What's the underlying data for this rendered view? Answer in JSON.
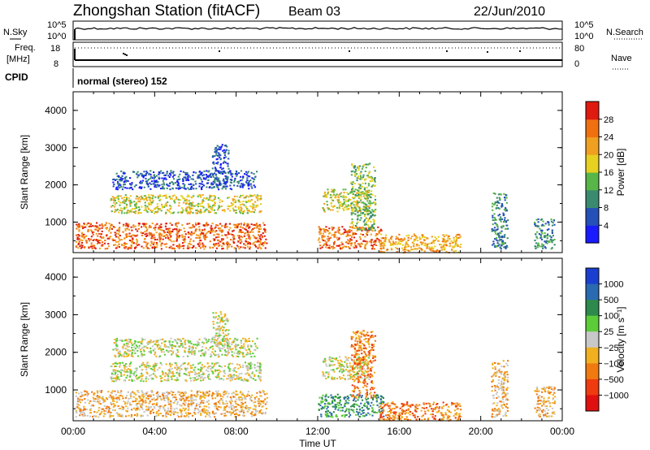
{
  "header": {
    "station": "Zhongshan Station (fitACF)",
    "beam": "Beam 03",
    "date": "22/Jun/2010"
  },
  "strips": {
    "nsky_label": "N.Sky",
    "nsearch_label": "N.Search",
    "freq_label_1": "Freq.",
    "freq_label_2": "[MHz]",
    "nave_label": "Nave",
    "cpid_label": "CPID",
    "cpid_text": "normal (stereo) 152",
    "nsky_ticks": [
      "10^5",
      "10^0"
    ],
    "nsearch_ticks": [
      "10^5",
      "10^0"
    ],
    "freq_ticks": [
      "18",
      "8"
    ],
    "nave_ticks": [
      "80",
      "0"
    ]
  },
  "chart_data": [
    {
      "type": "heatmap",
      "name": "power",
      "ylabel": "Slant Range [km]",
      "xlabel": "Time UT",
      "x_ticks": [
        "00:00",
        "04:00",
        "08:00",
        "12:00",
        "16:00",
        "20:00",
        "00:00"
      ],
      "y_ticks": [
        "1000",
        "2000",
        "3000",
        "4000"
      ],
      "ylim": [
        180,
        4500
      ],
      "xlim_hours": [
        0,
        24
      ],
      "colorbar_label": "Power [dB]",
      "colorbar_ticks": [
        "4",
        "8",
        "12",
        "16",
        "20",
        "24",
        "28"
      ],
      "colorbar_colors": [
        "#1a1aff",
        "#2450b8",
        "#3a8a70",
        "#58b548",
        "#e6d020",
        "#f0a020",
        "#f07010",
        "#e01a10"
      ],
      "regions": [
        {
          "t0": 0.1,
          "t1": 9.5,
          "r0": 300,
          "r1": 1000,
          "level": 6
        },
        {
          "t0": 1.8,
          "t1": 9.2,
          "r0": 1250,
          "r1": 1750,
          "level": 4
        },
        {
          "t0": 1.9,
          "t1": 9.0,
          "r0": 1900,
          "r1": 2400,
          "level": 1
        },
        {
          "t0": 12.2,
          "t1": 14.5,
          "r0": 1300,
          "r1": 1900,
          "level": 4
        },
        {
          "t0": 12.0,
          "t1": 15.2,
          "r0": 300,
          "r1": 900,
          "level": 6
        },
        {
          "t0": 15.0,
          "t1": 19.0,
          "r0": 200,
          "r1": 700,
          "level": 5
        },
        {
          "t0": 13.6,
          "t1": 14.8,
          "r0": 800,
          "r1": 2600,
          "level": 3
        },
        {
          "t0": 6.8,
          "t1": 7.6,
          "r0": 2000,
          "r1": 3100,
          "level": 1
        },
        {
          "t0": 20.5,
          "t1": 21.3,
          "r0": 300,
          "r1": 1800,
          "level": 2
        },
        {
          "t0": 22.6,
          "t1": 23.6,
          "r0": 300,
          "r1": 1100,
          "level": 2
        }
      ]
    },
    {
      "type": "heatmap",
      "name": "velocity",
      "ylabel": "Slant Range [km]",
      "xlabel": "Time UT",
      "x_ticks": [
        "00:00",
        "04:00",
        "08:00",
        "12:00",
        "16:00",
        "20:00",
        "00:00"
      ],
      "y_ticks": [
        "1000",
        "2000",
        "3000",
        "4000"
      ],
      "ylim": [
        180,
        4500
      ],
      "xlim_hours": [
        0,
        24
      ],
      "colorbar_label": "Velocity [m s⁻¹]",
      "colorbar_ticks": [
        "1000",
        "500",
        "100",
        "25",
        "−25",
        "−100",
        "−500",
        "−1000"
      ],
      "colorbar_colors": [
        "#1a3fd0",
        "#2a6ab0",
        "#2e8a4c",
        "#5ccc38",
        "#c8c8c8",
        "#f0b020",
        "#f07a10",
        "#f03a10",
        "#e01010"
      ],
      "regions": [
        {
          "t0": 0.1,
          "t1": 9.5,
          "r0": 300,
          "r1": 1000,
          "level": 5
        },
        {
          "t0": 1.8,
          "t1": 9.2,
          "r0": 1250,
          "r1": 1750,
          "level": 4
        },
        {
          "t0": 1.9,
          "t1": 9.0,
          "r0": 1900,
          "r1": 2400,
          "level": 4
        },
        {
          "t0": 12.2,
          "t1": 14.5,
          "r0": 1300,
          "r1": 1900,
          "level": 4
        },
        {
          "t0": 12.0,
          "t1": 15.2,
          "r0": 300,
          "r1": 900,
          "level": 2
        },
        {
          "t0": 15.0,
          "t1": 19.0,
          "r0": 200,
          "r1": 700,
          "level": 6
        },
        {
          "t0": 13.6,
          "t1": 14.8,
          "r0": 800,
          "r1": 2600,
          "level": 6
        },
        {
          "t0": 6.8,
          "t1": 7.6,
          "r0": 2000,
          "r1": 3100,
          "level": 4
        },
        {
          "t0": 20.5,
          "t1": 21.3,
          "r0": 300,
          "r1": 1800,
          "level": 5
        },
        {
          "t0": 22.6,
          "t1": 23.6,
          "r0": 300,
          "r1": 1100,
          "level": 5
        }
      ]
    }
  ]
}
